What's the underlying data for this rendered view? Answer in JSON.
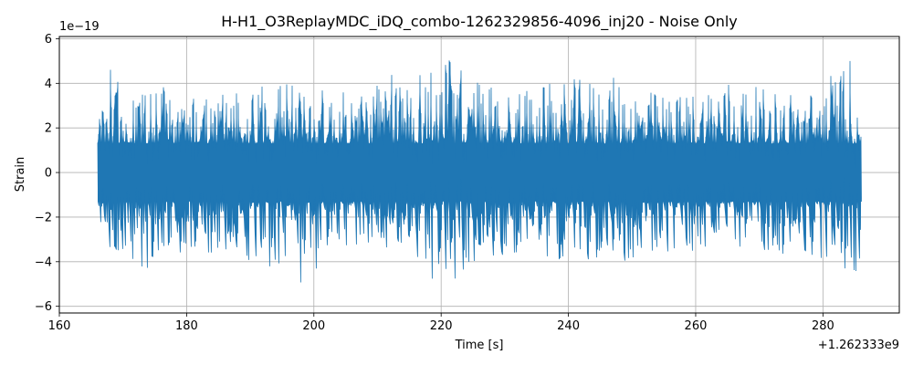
{
  "chart_data": {
    "type": "line",
    "title": "H-H1_O3ReplayMDC_iDQ_combo-1262329856-4096_inj20 - Noise Only",
    "xlabel": "Time [s]",
    "ylabel": "Strain",
    "x_offset_label": "+1.262333e9",
    "y_scale_label": "1e−19",
    "xlim": [
      160,
      292
    ],
    "ylim": [
      -6.3,
      6.1
    ],
    "xticks": [
      160,
      180,
      200,
      220,
      240,
      260,
      280
    ],
    "yticks": [
      -6,
      -4,
      -2,
      0,
      2,
      4,
      6
    ],
    "xtick_labels": [
      "160",
      "180",
      "200",
      "220",
      "240",
      "260",
      "280"
    ],
    "ytick_labels": [
      "−6",
      "−4",
      "−2",
      "0",
      "2",
      "4",
      "6"
    ],
    "grid": true,
    "series": [
      {
        "color": "#1f77b4",
        "x_range": [
          166,
          286
        ],
        "envelope_top": [
          [
            166,
            2.0
          ],
          [
            168,
            5.0
          ],
          [
            172,
            3.5
          ],
          [
            175,
            4.5
          ],
          [
            178,
            3.8
          ],
          [
            182,
            3.8
          ],
          [
            188,
            3.6
          ],
          [
            193,
            4.5
          ],
          [
            199,
            3.9
          ],
          [
            205,
            3.6
          ],
          [
            213,
            4.5
          ],
          [
            221,
            5.3
          ],
          [
            226,
            4.2
          ],
          [
            233,
            3.8
          ],
          [
            241,
            4.2
          ],
          [
            247,
            4.3
          ],
          [
            252,
            3.7
          ],
          [
            258,
            3.5
          ],
          [
            264,
            4.4
          ],
          [
            270,
            3.8
          ],
          [
            278,
            3.7
          ],
          [
            285,
            5.5
          ],
          [
            286,
            1.5
          ]
        ],
        "envelope_bottom": [
          [
            166,
            -2.5
          ],
          [
            169,
            -4.0
          ],
          [
            174,
            -4.4
          ],
          [
            180,
            -3.6
          ],
          [
            186,
            -3.6
          ],
          [
            193,
            -4.5
          ],
          [
            197,
            -5.4
          ],
          [
            201,
            -4.2
          ],
          [
            207,
            -3.4
          ],
          [
            214,
            -3.6
          ],
          [
            219,
            -5.0
          ],
          [
            220,
            -5.7
          ],
          [
            226,
            -4.0
          ],
          [
            233,
            -3.5
          ],
          [
            241,
            -4.1
          ],
          [
            247,
            -4.0
          ],
          [
            253,
            -3.9
          ],
          [
            260,
            -3.6
          ],
          [
            269,
            -3.4
          ],
          [
            277,
            -3.9
          ],
          [
            283,
            -4.1
          ],
          [
            285,
            -5.4
          ],
          [
            286,
            -3.5
          ]
        ]
      }
    ]
  }
}
